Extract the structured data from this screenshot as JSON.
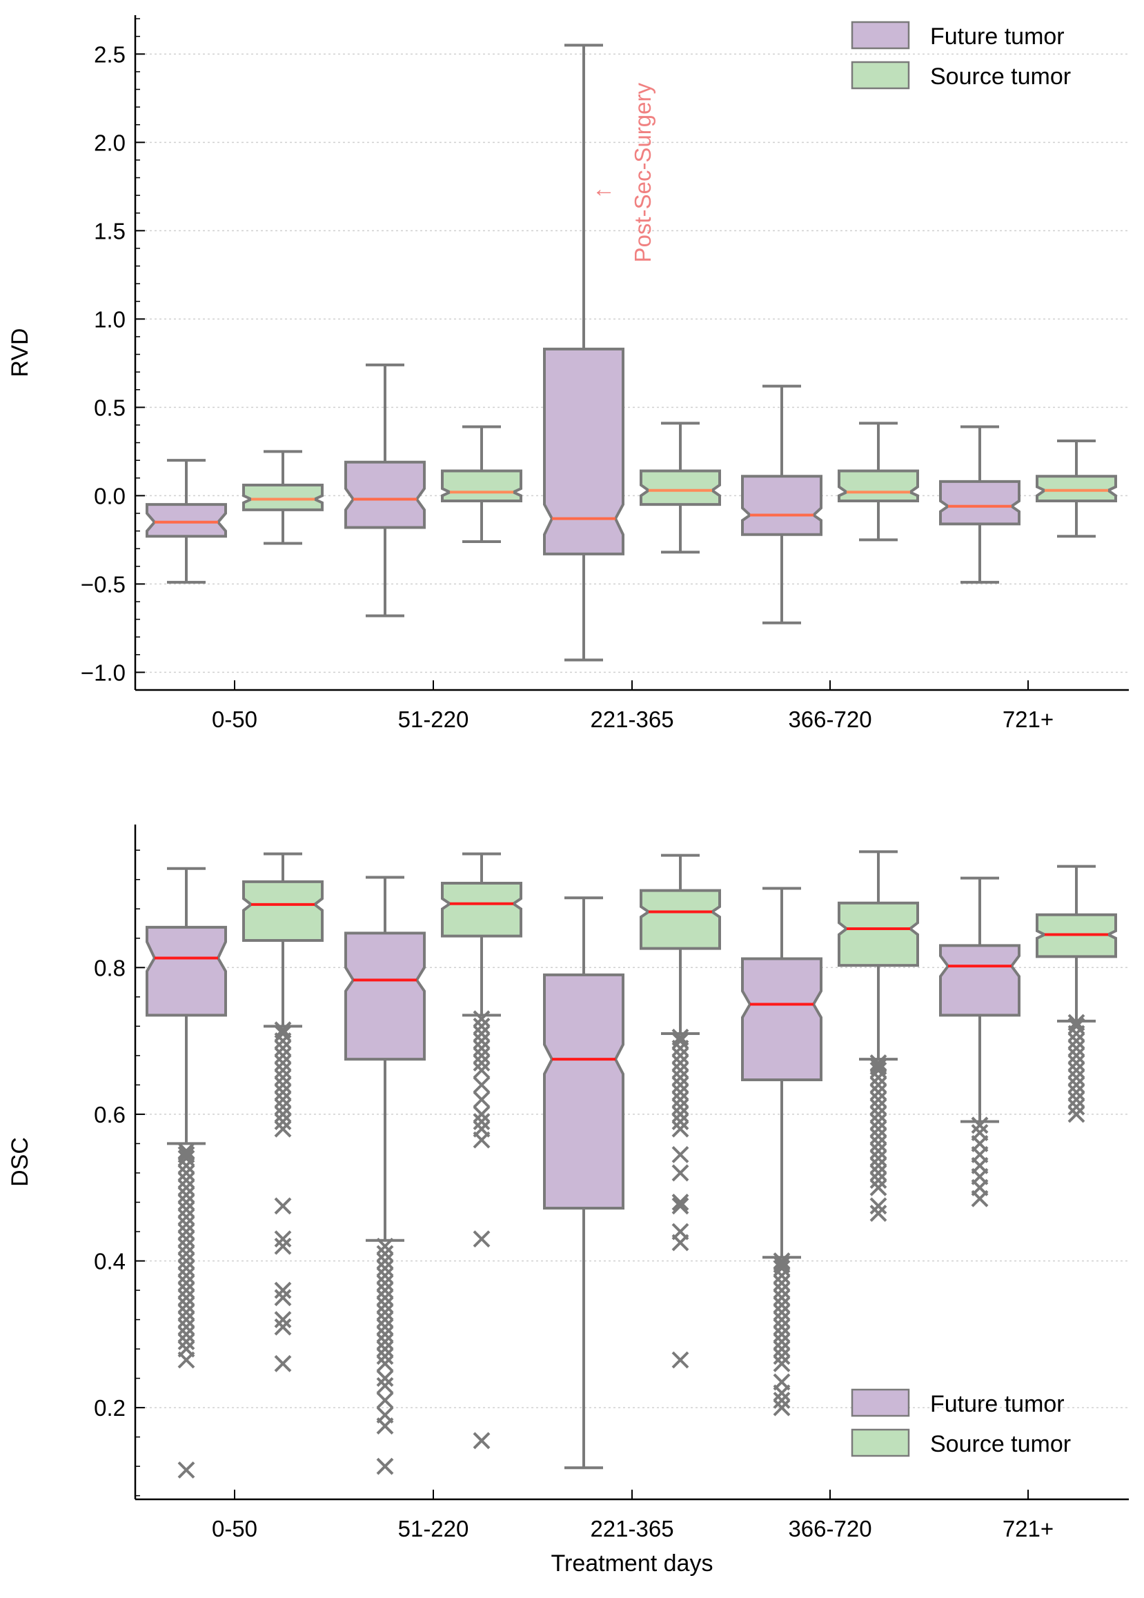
{
  "colors": {
    "future_fill": "#cbb8d6",
    "source_fill": "#bfe0bb",
    "box_edge": "#7a7a7a",
    "whisker": "#7a7a7a",
    "median_top_future": "#ff6b4a",
    "median_top_source": "#ff8a5a",
    "median_bottom": "#ff1a1a",
    "annotation": "#f08080",
    "grid": "#d0d0d0",
    "axis": "#000000"
  },
  "chart_data": [
    {
      "type": "boxplot",
      "ylabel": "RVD",
      "xlabel": "",
      "categories": [
        "0-50",
        "51-220",
        "221-365",
        "366-720",
        "721+"
      ],
      "yticks": [
        -1.0,
        -0.5,
        0.0,
        0.5,
        1.0,
        1.5,
        2.0,
        2.5
      ],
      "ytick_labels": [
        "−1.0",
        "−0.5",
        "0.0",
        "0.5",
        "1.0",
        "1.5",
        "2.0",
        "2.5"
      ],
      "ylim": [
        -1.1,
        2.72
      ],
      "grid": true,
      "legend_position": "top-right",
      "legend": [
        {
          "name": "Future tumor",
          "color_key": "future_fill"
        },
        {
          "name": "Source tumor",
          "color_key": "source_fill"
        }
      ],
      "annotation": {
        "text": "Post-Sec-Surgery",
        "arrow": "←",
        "category": "221-365",
        "y": 1.74
      },
      "series": [
        {
          "name": "Future tumor",
          "stats": [
            {
              "wlo": -0.49,
              "q1": -0.23,
              "med": -0.15,
              "q3": -0.05,
              "whi": 0.2,
              "nlo": -0.2,
              "nhi": -0.1
            },
            {
              "wlo": -0.68,
              "q1": -0.18,
              "med": -0.02,
              "q3": 0.19,
              "whi": 0.74,
              "nlo": -0.08,
              "nhi": 0.04
            },
            {
              "wlo": -0.93,
              "q1": -0.33,
              "med": -0.13,
              "q3": 0.83,
              "whi": 2.55,
              "nlo": -0.22,
              "nhi": -0.05
            },
            {
              "wlo": -0.72,
              "q1": -0.22,
              "med": -0.11,
              "q3": 0.11,
              "whi": 0.62,
              "nlo": -0.14,
              "nhi": -0.07
            },
            {
              "wlo": -0.49,
              "q1": -0.16,
              "med": -0.06,
              "q3": 0.08,
              "whi": 0.39,
              "nlo": -0.09,
              "nhi": -0.03
            }
          ],
          "fliers": [
            [],
            [],
            [],
            [],
            []
          ]
        },
        {
          "name": "Source tumor",
          "stats": [
            {
              "wlo": -0.27,
              "q1": -0.08,
              "med": -0.02,
              "q3": 0.06,
              "whi": 0.25,
              "nlo": -0.04,
              "nhi": 0.0
            },
            {
              "wlo": -0.26,
              "q1": -0.03,
              "med": 0.02,
              "q3": 0.14,
              "whi": 0.39,
              "nlo": 0.0,
              "nhi": 0.04
            },
            {
              "wlo": -0.32,
              "q1": -0.05,
              "med": 0.03,
              "q3": 0.14,
              "whi": 0.41,
              "nlo": 0.0,
              "nhi": 0.06
            },
            {
              "wlo": -0.25,
              "q1": -0.03,
              "med": 0.02,
              "q3": 0.14,
              "whi": 0.41,
              "nlo": 0.0,
              "nhi": 0.05
            },
            {
              "wlo": -0.23,
              "q1": -0.03,
              "med": 0.03,
              "q3": 0.11,
              "whi": 0.31,
              "nlo": 0.0,
              "nhi": 0.05
            }
          ],
          "fliers": [
            [],
            [],
            [],
            [],
            []
          ]
        }
      ]
    },
    {
      "type": "boxplot",
      "ylabel": "DSC",
      "xlabel": "Treatment days",
      "categories": [
        "0-50",
        "51-220",
        "221-365",
        "366-720",
        "721+"
      ],
      "yticks": [
        0.2,
        0.4,
        0.6,
        0.8
      ],
      "ytick_labels": [
        "0.2",
        "0.4",
        "0.6",
        "0.8"
      ],
      "ylim": [
        0.075,
        0.995
      ],
      "grid": true,
      "legend_position": "bottom-right",
      "legend": [
        {
          "name": "Future tumor",
          "color_key": "future_fill"
        },
        {
          "name": "Source tumor",
          "color_key": "source_fill"
        }
      ],
      "series": [
        {
          "name": "Future tumor",
          "stats": [
            {
              "wlo": 0.56,
              "q1": 0.735,
              "med": 0.813,
              "q3": 0.855,
              "whi": 0.935,
              "nlo": 0.795,
              "nhi": 0.835
            },
            {
              "wlo": 0.428,
              "q1": 0.675,
              "med": 0.783,
              "q3": 0.847,
              "whi": 0.923,
              "nlo": 0.768,
              "nhi": 0.8
            },
            {
              "wlo": 0.118,
              "q1": 0.472,
              "med": 0.675,
              "q3": 0.79,
              "whi": 0.895,
              "nlo": 0.655,
              "nhi": 0.695
            },
            {
              "wlo": 0.405,
              "q1": 0.647,
              "med": 0.75,
              "q3": 0.812,
              "whi": 0.908,
              "nlo": 0.732,
              "nhi": 0.768
            },
            {
              "wlo": 0.59,
              "q1": 0.735,
              "med": 0.802,
              "q3": 0.83,
              "whi": 0.922,
              "nlo": 0.788,
              "nhi": 0.816
            }
          ],
          "fliers": [
            [
              0.55,
              0.545,
              0.54,
              0.53,
              0.52,
              0.51,
              0.5,
              0.49,
              0.48,
              0.47,
              0.46,
              0.45,
              0.44,
              0.43,
              0.42,
              0.41,
              0.4,
              0.39,
              0.38,
              0.37,
              0.36,
              0.35,
              0.34,
              0.33,
              0.32,
              0.31,
              0.3,
              0.29,
              0.28,
              0.265,
              0.115
            ],
            [
              0.42,
              0.41,
              0.4,
              0.39,
              0.38,
              0.37,
              0.36,
              0.35,
              0.34,
              0.33,
              0.32,
              0.31,
              0.3,
              0.29,
              0.28,
              0.27,
              0.26,
              0.24,
              0.23,
              0.21,
              0.19,
              0.175,
              0.12
            ],
            [],
            [
              0.4,
              0.395,
              0.39,
              0.38,
              0.37,
              0.36,
              0.35,
              0.34,
              0.33,
              0.32,
              0.31,
              0.3,
              0.29,
              0.28,
              0.27,
              0.26,
              0.235,
              0.22,
              0.21,
              0.2
            ],
            [
              0.585,
              0.575,
              0.56,
              0.545,
              0.53,
              0.515,
              0.5,
              0.485
            ]
          ]
        },
        {
          "name": "Source tumor",
          "stats": [
            {
              "wlo": 0.72,
              "q1": 0.837,
              "med": 0.886,
              "q3": 0.917,
              "whi": 0.955,
              "nlo": 0.878,
              "nhi": 0.894
            },
            {
              "wlo": 0.735,
              "q1": 0.843,
              "med": 0.887,
              "q3": 0.915,
              "whi": 0.955,
              "nlo": 0.88,
              "nhi": 0.894
            },
            {
              "wlo": 0.71,
              "q1": 0.826,
              "med": 0.876,
              "q3": 0.905,
              "whi": 0.953,
              "nlo": 0.869,
              "nhi": 0.883
            },
            {
              "wlo": 0.675,
              "q1": 0.803,
              "med": 0.853,
              "q3": 0.888,
              "whi": 0.958,
              "nlo": 0.845,
              "nhi": 0.861
            },
            {
              "wlo": 0.727,
              "q1": 0.815,
              "med": 0.845,
              "q3": 0.872,
              "whi": 0.938,
              "nlo": 0.84,
              "nhi": 0.85
            }
          ],
          "fliers": [
            [
              0.715,
              0.71,
              0.7,
              0.69,
              0.68,
              0.67,
              0.66,
              0.65,
              0.64,
              0.63,
              0.62,
              0.61,
              0.6,
              0.59,
              0.58,
              0.475,
              0.43,
              0.42,
              0.36,
              0.35,
              0.32,
              0.31,
              0.26
            ],
            [
              0.73,
              0.72,
              0.71,
              0.7,
              0.69,
              0.68,
              0.67,
              0.66,
              0.64,
              0.62,
              0.6,
              0.59,
              0.58,
              0.565,
              0.43,
              0.155
            ],
            [
              0.705,
              0.7,
              0.69,
              0.68,
              0.67,
              0.66,
              0.65,
              0.64,
              0.63,
              0.62,
              0.61,
              0.6,
              0.59,
              0.58,
              0.545,
              0.52,
              0.48,
              0.475,
              0.44,
              0.425,
              0.265
            ],
            [
              0.67,
              0.665,
              0.66,
              0.65,
              0.64,
              0.63,
              0.62,
              0.61,
              0.6,
              0.59,
              0.58,
              0.57,
              0.56,
              0.55,
              0.54,
              0.53,
              0.52,
              0.51,
              0.5,
              0.475,
              0.465
            ],
            [
              0.725,
              0.72,
              0.71,
              0.7,
              0.69,
              0.68,
              0.67,
              0.66,
              0.65,
              0.64,
              0.63,
              0.62,
              0.61,
              0.6
            ]
          ]
        }
      ]
    }
  ]
}
